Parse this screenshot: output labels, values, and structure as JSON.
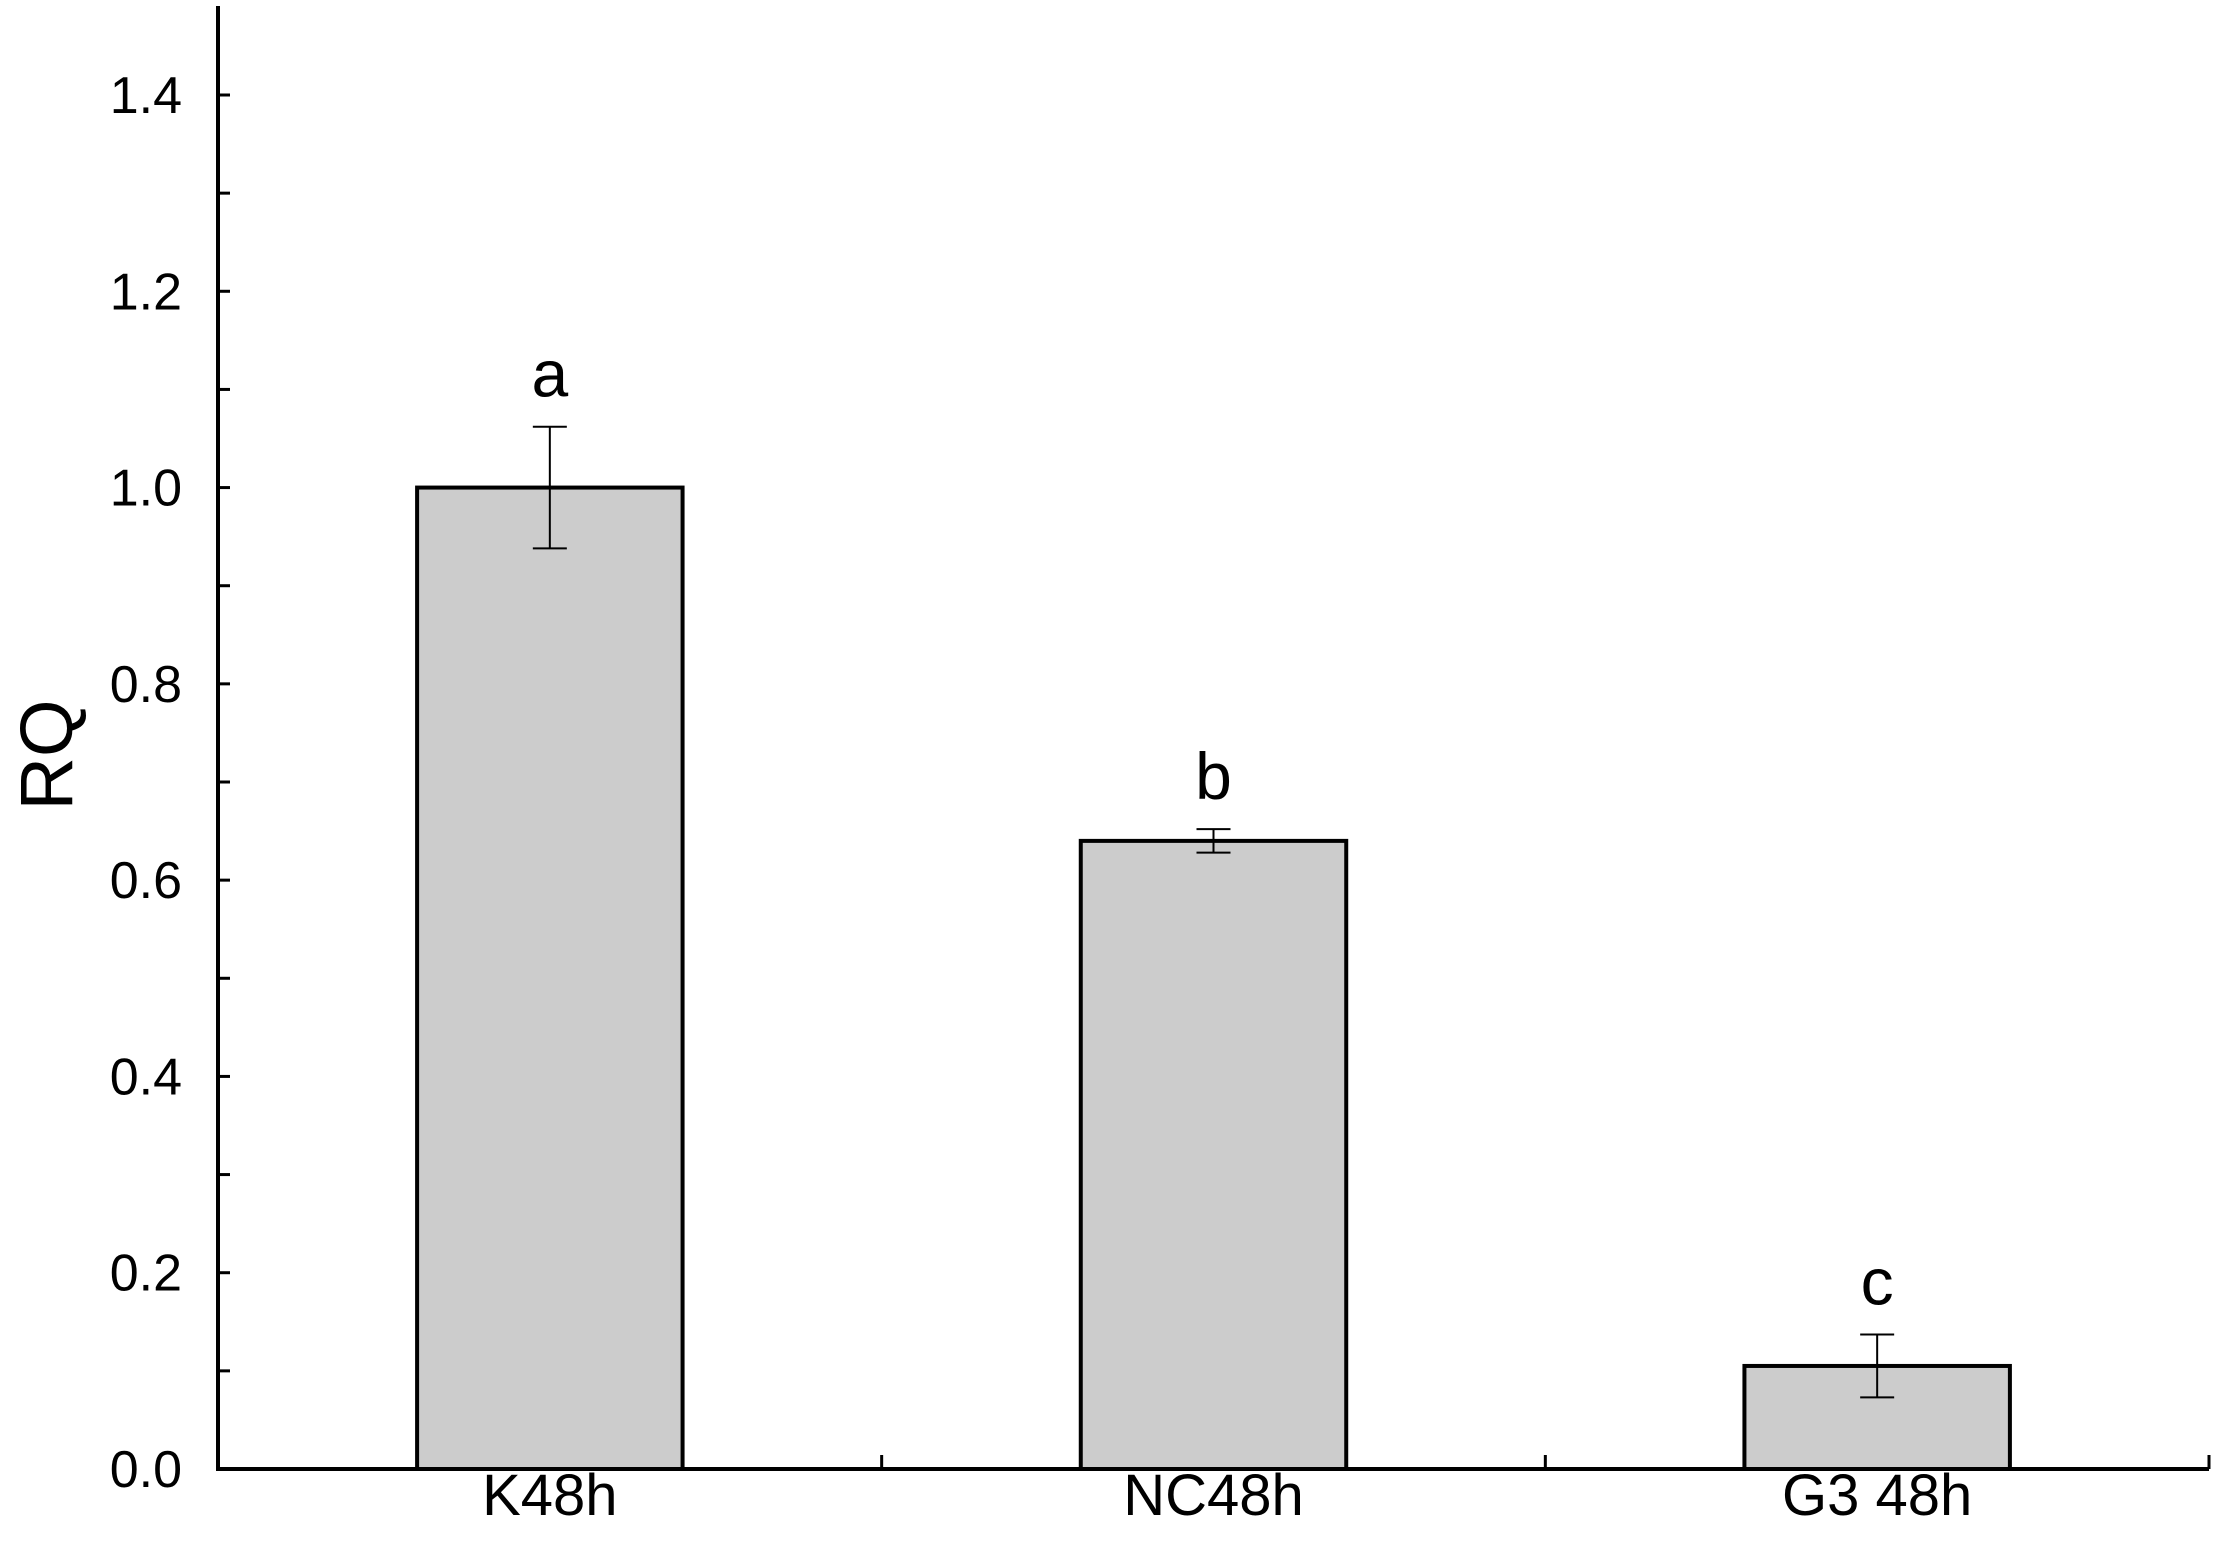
{
  "chart_data": {
    "type": "bar",
    "title": "",
    "xlabel": "",
    "ylabel": "RQ",
    "ylim": [
      0,
      1.5
    ],
    "yticks": [
      0.0,
      0.2,
      0.4,
      0.6,
      0.8,
      1.0,
      1.2,
      1.4
    ],
    "ytick_labels": [
      "0.0",
      "0.2",
      "0.4",
      "0.6",
      "0.8",
      "1.0",
      "1.2",
      "1.4"
    ],
    "categories": [
      "K48h",
      "NC48h",
      "G3 48h"
    ],
    "values": [
      1.0,
      0.64,
      0.105
    ],
    "error": [
      0.062,
      0.012,
      0.032
    ],
    "significance": [
      "a",
      "b",
      "c"
    ],
    "bar_color": "#cccccc",
    "grid": false
  }
}
